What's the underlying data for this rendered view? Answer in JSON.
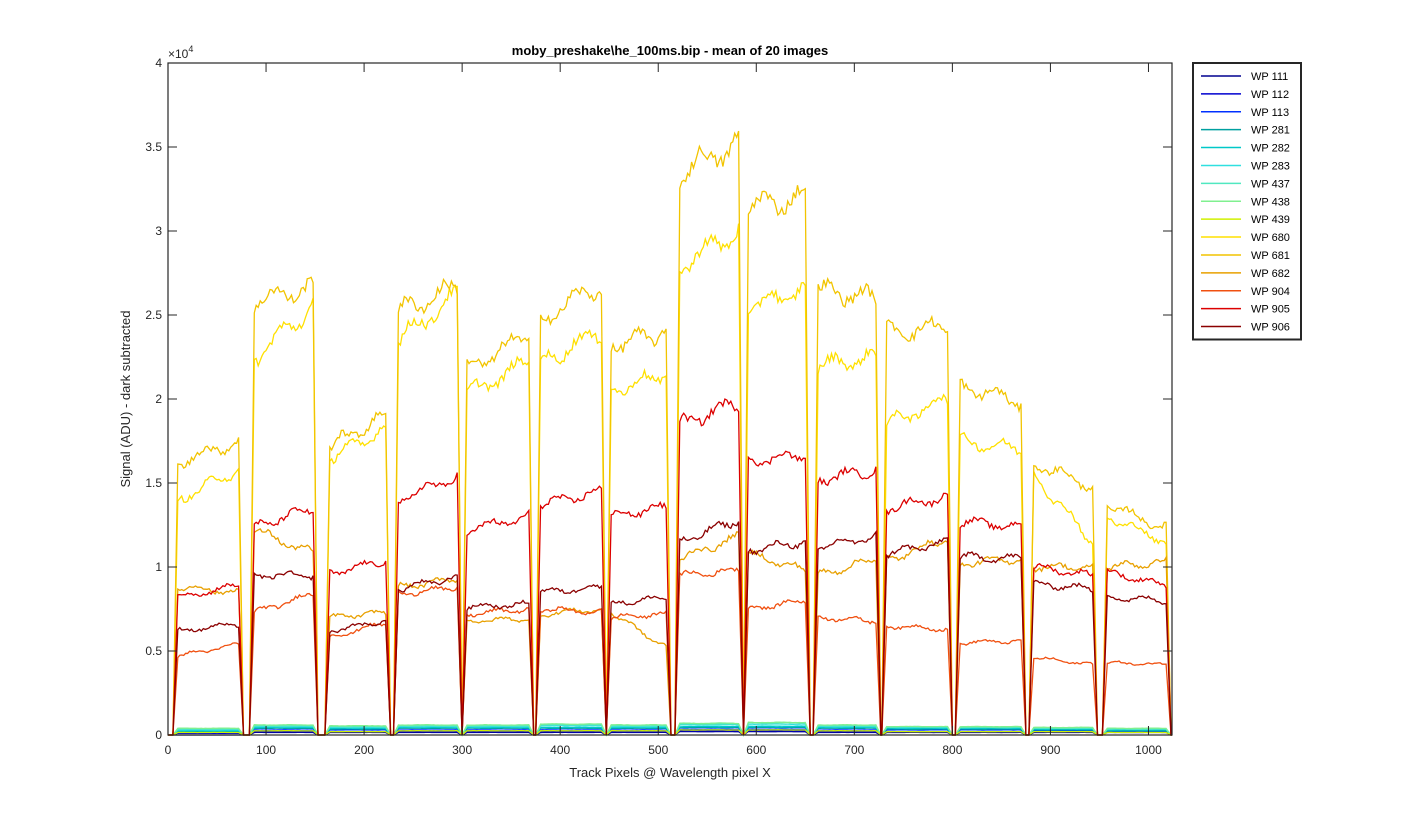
{
  "chart_data": {
    "type": "line",
    "title": "moby_preshake\\he_100ms.bip - mean of 20 images",
    "xlabel": "Track Pixels @ Wavelength pixel X",
    "ylabel": "Signal (ADU) - dark subtracted",
    "xlim": [
      0,
      1024
    ],
    "ylim": [
      0,
      40000
    ],
    "x_ticks": [
      0,
      100,
      200,
      300,
      400,
      500,
      600,
      700,
      800,
      900,
      1000
    ],
    "y_ticks": [
      0,
      5000,
      10000,
      15000,
      20000,
      25000,
      30000,
      35000,
      40000
    ],
    "y_tick_labels": [
      "0",
      "0.5",
      "1",
      "1.5",
      "2",
      "2.5",
      "3",
      "3.5",
      "4"
    ],
    "y_exponent_base": "×10",
    "y_exponent_power": "4",
    "grid": false,
    "legend_position": "outside-top-right",
    "segments": [
      [
        10,
        72
      ],
      [
        88,
        148
      ],
      [
        165,
        222
      ],
      [
        235,
        295
      ],
      [
        305,
        368
      ],
      [
        380,
        442
      ],
      [
        452,
        508
      ],
      [
        522,
        582
      ],
      [
        592,
        650
      ],
      [
        663,
        722
      ],
      [
        733,
        795
      ],
      [
        808,
        870
      ],
      [
        883,
        943
      ],
      [
        958,
        1018
      ]
    ],
    "series": [
      {
        "name": "WP 111",
        "color": "#00008f",
        "levels": [
          [
            0,
            0
          ],
          [
            150,
            150
          ],
          [
            150,
            150
          ],
          [
            150,
            150
          ],
          [
            150,
            150
          ],
          [
            150,
            150
          ],
          [
            150,
            150
          ],
          [
            200,
            200
          ],
          [
            200,
            200
          ],
          [
            150,
            150
          ],
          [
            150,
            150
          ],
          [
            150,
            150
          ],
          [
            150,
            150
          ],
          [
            150,
            150
          ]
        ]
      },
      {
        "name": "WP 112",
        "color": "#0000cf",
        "levels": [
          [
            100,
            100
          ],
          [
            200,
            200
          ],
          [
            200,
            200
          ],
          [
            200,
            200
          ],
          [
            200,
            200
          ],
          [
            200,
            200
          ],
          [
            200,
            200
          ],
          [
            250,
            250
          ],
          [
            250,
            250
          ],
          [
            200,
            200
          ],
          [
            200,
            200
          ],
          [
            200,
            200
          ],
          [
            200,
            200
          ],
          [
            150,
            150
          ]
        ]
      },
      {
        "name": "WP 113",
        "color": "#0030ff",
        "levels": [
          [
            150,
            150
          ],
          [
            300,
            300
          ],
          [
            300,
            300
          ],
          [
            300,
            300
          ],
          [
            300,
            300
          ],
          [
            300,
            300
          ],
          [
            300,
            300
          ],
          [
            350,
            350
          ],
          [
            350,
            350
          ],
          [
            300,
            300
          ],
          [
            300,
            300
          ],
          [
            300,
            300
          ],
          [
            250,
            250
          ],
          [
            200,
            200
          ]
        ]
      },
      {
        "name": "WP 281",
        "color": "#00a0a0",
        "levels": [
          [
            200,
            200
          ],
          [
            400,
            400
          ],
          [
            350,
            350
          ],
          [
            400,
            400
          ],
          [
            400,
            400
          ],
          [
            400,
            400
          ],
          [
            400,
            400
          ],
          [
            450,
            450
          ],
          [
            450,
            450
          ],
          [
            400,
            400
          ],
          [
            350,
            350
          ],
          [
            350,
            350
          ],
          [
            300,
            300
          ],
          [
            250,
            250
          ]
        ]
      },
      {
        "name": "WP 282",
        "color": "#00c8c8",
        "levels": [
          [
            250,
            250
          ],
          [
            450,
            450
          ],
          [
            400,
            400
          ],
          [
            450,
            450
          ],
          [
            450,
            450
          ],
          [
            450,
            450
          ],
          [
            450,
            450
          ],
          [
            500,
            500
          ],
          [
            500,
            500
          ],
          [
            450,
            450
          ],
          [
            400,
            400
          ],
          [
            400,
            400
          ],
          [
            350,
            350
          ],
          [
            300,
            300
          ]
        ]
      },
      {
        "name": "WP 283",
        "color": "#30e0e0",
        "levels": [
          [
            300,
            300
          ],
          [
            500,
            500
          ],
          [
            450,
            450
          ],
          [
            500,
            500
          ],
          [
            500,
            500
          ],
          [
            550,
            550
          ],
          [
            500,
            500
          ],
          [
            600,
            600
          ],
          [
            600,
            600
          ],
          [
            500,
            500
          ],
          [
            450,
            450
          ],
          [
            450,
            450
          ],
          [
            400,
            400
          ],
          [
            350,
            350
          ]
        ]
      },
      {
        "name": "WP 437",
        "color": "#50e8c0",
        "levels": [
          [
            350,
            350
          ],
          [
            550,
            550
          ],
          [
            500,
            500
          ],
          [
            550,
            550
          ],
          [
            550,
            550
          ],
          [
            600,
            600
          ],
          [
            550,
            550
          ],
          [
            650,
            650
          ],
          [
            700,
            700
          ],
          [
            550,
            550
          ],
          [
            500,
            500
          ],
          [
            450,
            450
          ],
          [
            400,
            400
          ],
          [
            350,
            350
          ]
        ]
      },
      {
        "name": "WP 438",
        "color": "#80f090",
        "levels": [
          [
            400,
            400
          ],
          [
            600,
            600
          ],
          [
            550,
            550
          ],
          [
            600,
            600
          ],
          [
            600,
            600
          ],
          [
            650,
            650
          ],
          [
            600,
            600
          ],
          [
            700,
            700
          ],
          [
            750,
            750
          ],
          [
            600,
            600
          ],
          [
            500,
            500
          ],
          [
            500,
            500
          ],
          [
            450,
            450
          ],
          [
            400,
            400
          ]
        ]
      },
      {
        "name": "WP 439",
        "color": "#d0f000",
        "levels": [
          [
            150,
            150
          ],
          [
            250,
            250
          ],
          [
            200,
            200
          ],
          [
            250,
            250
          ],
          [
            250,
            250
          ],
          [
            250,
            250
          ],
          [
            250,
            250
          ],
          [
            300,
            300
          ],
          [
            300,
            300
          ],
          [
            250,
            250
          ],
          [
            200,
            200
          ],
          [
            200,
            200
          ],
          [
            200,
            200
          ],
          [
            150,
            150
          ]
        ]
      },
      {
        "name": "WP 680",
        "color": "#ffe000",
        "levels": [
          [
            14000,
            15800
          ],
          [
            22500,
            25500
          ],
          [
            16500,
            18200
          ],
          [
            23500,
            26200
          ],
          [
            20300,
            22200
          ],
          [
            22200,
            24000
          ],
          [
            20500,
            21500
          ],
          [
            28000,
            30000
          ],
          [
            25500,
            26500
          ],
          [
            22000,
            22500
          ],
          [
            18500,
            20000
          ],
          [
            17500,
            17000
          ],
          [
            15500,
            11500
          ],
          [
            13000,
            11500
          ]
        ]
      },
      {
        "name": "WP 681",
        "color": "#f2c400",
        "levels": [
          [
            16200,
            17500
          ],
          [
            25800,
            26700
          ],
          [
            17200,
            19000
          ],
          [
            25200,
            26700
          ],
          [
            21800,
            23800
          ],
          [
            24800,
            26800
          ],
          [
            23200,
            24000
          ],
          [
            33500,
            35200
          ],
          [
            31500,
            32000
          ],
          [
            26500,
            26000
          ],
          [
            24000,
            24300
          ],
          [
            20800,
            19800
          ],
          [
            16200,
            14800
          ],
          [
            13700,
            12300
          ]
        ]
      },
      {
        "name": "WP 682",
        "color": "#e8a000",
        "levels": [
          [
            8800,
            8500
          ],
          [
            12200,
            10800
          ],
          [
            7000,
            7300
          ],
          [
            8800,
            9300
          ],
          [
            6800,
            6900
          ],
          [
            7200,
            7500
          ],
          [
            7300,
            5200
          ],
          [
            10500,
            11800
          ],
          [
            10800,
            9800
          ],
          [
            9500,
            10500
          ],
          [
            10400,
            11700
          ],
          [
            10200,
            10500
          ],
          [
            10000,
            10000
          ],
          [
            10000,
            10300
          ]
        ]
      },
      {
        "name": "WP 904",
        "color": "#f05010",
        "levels": [
          [
            4700,
            5400
          ],
          [
            7300,
            8400
          ],
          [
            5800,
            6700
          ],
          [
            8400,
            8800
          ],
          [
            7200,
            7500
          ],
          [
            7500,
            7300
          ],
          [
            7000,
            7200
          ],
          [
            9500,
            9800
          ],
          [
            7500,
            8000
          ],
          [
            7000,
            6800
          ],
          [
            6500,
            6300
          ],
          [
            5500,
            5600
          ],
          [
            4600,
            4200
          ],
          [
            4300,
            4200
          ]
        ]
      },
      {
        "name": "WP 905",
        "color": "#dc0000",
        "levels": [
          [
            8200,
            8900
          ],
          [
            12400,
            13500
          ],
          [
            9600,
            10400
          ],
          [
            14000,
            15400
          ],
          [
            12200,
            13000
          ],
          [
            13700,
            14500
          ],
          [
            13000,
            13600
          ],
          [
            18500,
            19800
          ],
          [
            16300,
            16700
          ],
          [
            15200,
            15800
          ],
          [
            13500,
            14200
          ],
          [
            12700,
            12400
          ],
          [
            10000,
            9500
          ],
          [
            9700,
            8900
          ]
        ]
      },
      {
        "name": "WP 906",
        "color": "#8b0000",
        "levels": [
          [
            6200,
            6600
          ],
          [
            9500,
            9500
          ],
          [
            6200,
            6800
          ],
          [
            8700,
            9400
          ],
          [
            7600,
            7800
          ],
          [
            8500,
            8800
          ],
          [
            7800,
            8200
          ],
          [
            11500,
            12800
          ],
          [
            11000,
            11500
          ],
          [
            11200,
            11800
          ],
          [
            10800,
            11500
          ],
          [
            10600,
            10500
          ],
          [
            9000,
            8700
          ],
          [
            8200,
            8000
          ]
        ]
      }
    ]
  }
}
